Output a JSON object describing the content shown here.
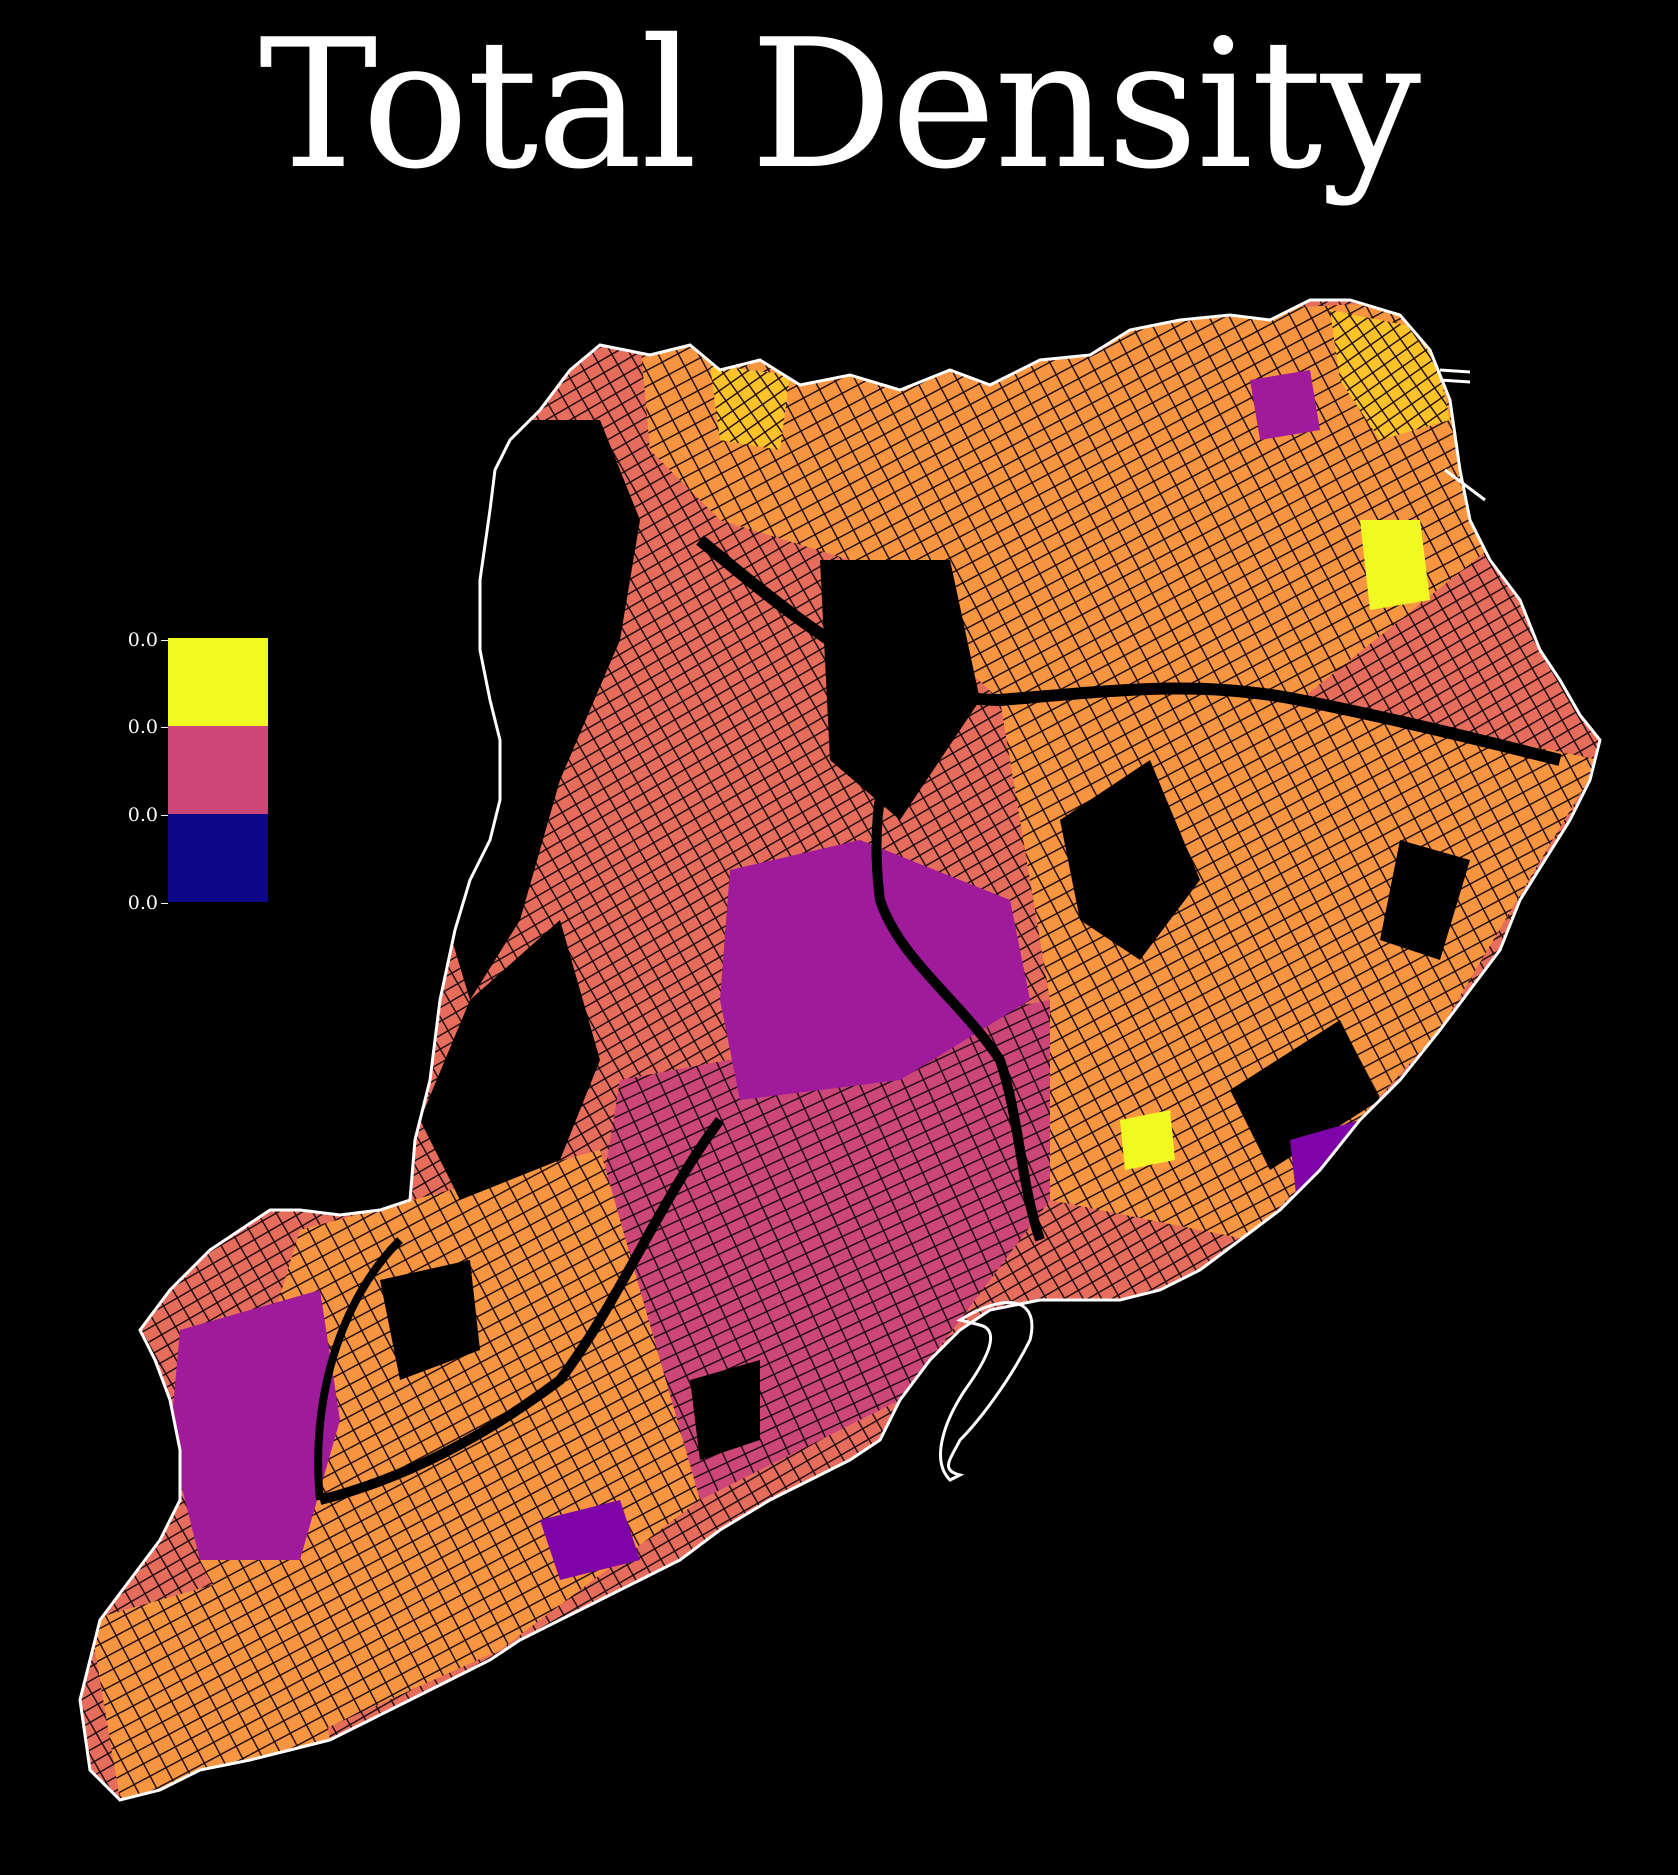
{
  "title": "Total Density",
  "legend": {
    "ticks": [
      "0.0",
      "0.0",
      "0.0",
      "0.0"
    ],
    "colors": [
      "#f0f921",
      "#cc4778",
      "#0d0887"
    ]
  },
  "palette": {
    "background": "#000000",
    "outline": "#ffffff",
    "land_colors": [
      "#f89540",
      "#e66c5c",
      "#cc4778",
      "#a01a9c",
      "#7e03a8",
      "#fdc328",
      "#f0f921"
    ]
  }
}
